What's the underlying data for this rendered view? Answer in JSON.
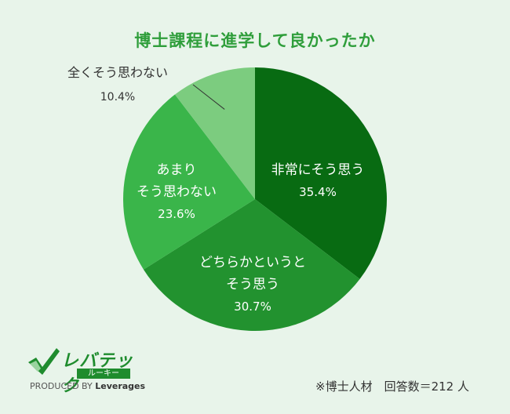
{
  "chart_data": {
    "type": "pie",
    "title": "博士課程に進学して良かったか",
    "slices": [
      {
        "label_lines": [
          "非常にそう思う"
        ],
        "value": 35.4,
        "value_label": "35.4%",
        "color": "#086b12"
      },
      {
        "label_lines": [
          "どちらかというと",
          "そう思う"
        ],
        "value": 30.7,
        "value_label": "30.7%",
        "color": "#22922f"
      },
      {
        "label_lines": [
          "あまり",
          "そう思わない"
        ],
        "value": 23.6,
        "value_label": "23.6%",
        "color": "#3ab54a"
      },
      {
        "label_lines": [
          "全くそう思わない"
        ],
        "value": 10.4,
        "value_label": "10.4%",
        "color": "#7ccc7f"
      }
    ],
    "start": "12 o'clock, clockwise"
  },
  "logo": {
    "name": "レバテック",
    "sub": "ルーキー",
    "credit_prefix": "PRODUCED BY",
    "credit_brand": "Leverages"
  },
  "note": "※博士人材　回答数＝212 人"
}
